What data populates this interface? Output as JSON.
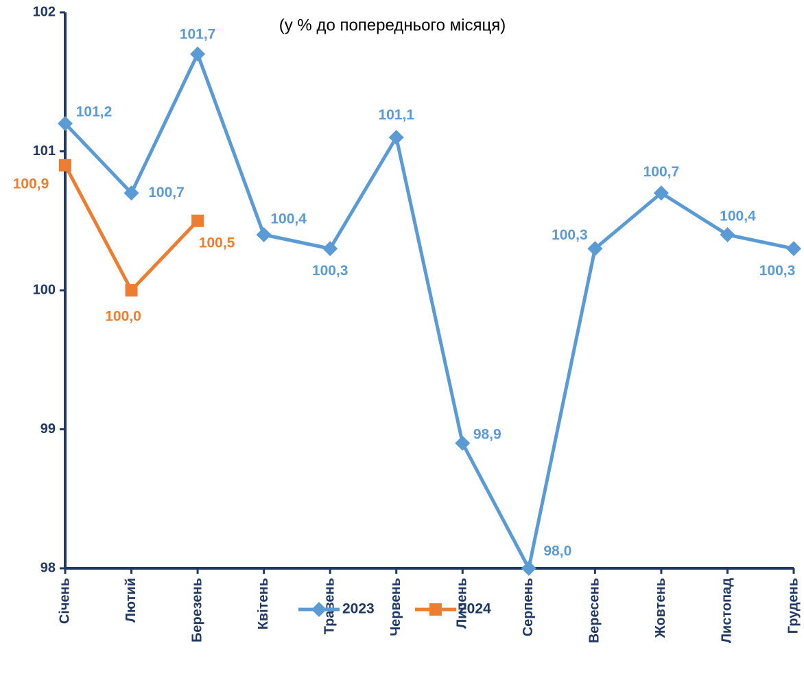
{
  "chart_data": {
    "type": "line",
    "subtitle": "(у % до попереднього місяця)",
    "categories": [
      "Січень",
      "Лютий",
      "Березень",
      "Квітень",
      "Травень",
      "Червень",
      "Липень",
      "Серпень",
      "Вересень",
      "Жовтень",
      "Листопад",
      "Грудень"
    ],
    "series": [
      {
        "name": "2023",
        "color": "#5b9bd5",
        "marker": "diamond",
        "values": [
          101.2,
          100.7,
          101.7,
          100.4,
          100.3,
          101.1,
          98.9,
          98.0,
          100.3,
          100.7,
          100.4,
          100.3
        ],
        "value_labels": [
          "101,2",
          "100,7",
          "101,7",
          "100,4",
          "100,3",
          "101,1",
          "98,9",
          "98,0",
          "100,3",
          "100,7",
          "100,4",
          "100,3"
        ]
      },
      {
        "name": "2024",
        "color": "#ed7d31",
        "marker": "square",
        "values": [
          100.9,
          100.0,
          100.5,
          null,
          null,
          null,
          null,
          null,
          null,
          null,
          null,
          null
        ],
        "value_labels": [
          "100,9",
          "100,0",
          "100,5",
          null,
          null,
          null,
          null,
          null,
          null,
          null,
          null,
          null
        ]
      }
    ],
    "ylim": [
      98,
      102
    ],
    "yticks": [
      98,
      99,
      100,
      101,
      102
    ],
    "legend": "bottom"
  }
}
